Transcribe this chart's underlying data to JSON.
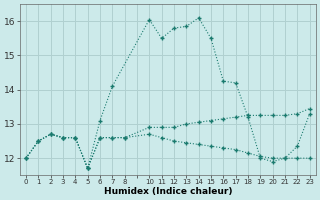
{
  "xlabel": "Humidex (Indice chaleur)",
  "bg_color": "#cceaea",
  "grid_color": "#b0d0d0",
  "line_color": "#1a7a6e",
  "xlim": [
    -0.5,
    23.5
  ],
  "ylim": [
    11.5,
    16.5
  ],
  "yticks": [
    12,
    13,
    14,
    15,
    16
  ],
  "xtick_labels": [
    "0",
    "1",
    "2",
    "3",
    "4",
    "5",
    "6",
    "7",
    "8",
    "",
    "10",
    "11",
    "12",
    "13",
    "14",
    "15",
    "16",
    "17",
    "18",
    "19",
    "20",
    "21",
    "22",
    "23"
  ],
  "line1_x": [
    0,
    1,
    2,
    3,
    4,
    5,
    6,
    7,
    10,
    11,
    12,
    13,
    14,
    15,
    16,
    17,
    18,
    19,
    20,
    21,
    22,
    23
  ],
  "line1_y": [
    12.0,
    12.5,
    12.7,
    12.6,
    12.6,
    11.7,
    13.1,
    14.1,
    16.05,
    15.5,
    15.8,
    15.85,
    16.1,
    15.5,
    14.25,
    14.2,
    13.2,
    12.0,
    11.9,
    12.0,
    12.35,
    13.3
  ],
  "line2_x": [
    0,
    1,
    2,
    3,
    4,
    5,
    6,
    7,
    8,
    10,
    11,
    12,
    13,
    14,
    15,
    16,
    17,
    18,
    19,
    20,
    21,
    22,
    23
  ],
  "line2_y": [
    12.0,
    12.5,
    12.7,
    12.6,
    12.6,
    11.7,
    12.6,
    12.6,
    12.6,
    12.7,
    12.6,
    12.5,
    12.45,
    12.4,
    12.35,
    12.3,
    12.25,
    12.15,
    12.05,
    12.0,
    12.0,
    12.0,
    12.0
  ],
  "line3_x": [
    0,
    1,
    2,
    3,
    4,
    5,
    6,
    7,
    8,
    10,
    11,
    12,
    13,
    14,
    15,
    16,
    17,
    18,
    19,
    20,
    21,
    22,
    23
  ],
  "line3_y": [
    12.0,
    12.5,
    12.7,
    12.6,
    12.6,
    11.7,
    12.6,
    12.6,
    12.6,
    12.9,
    12.9,
    12.9,
    13.0,
    13.05,
    13.1,
    13.15,
    13.2,
    13.25,
    13.25,
    13.25,
    13.25,
    13.3,
    13.45
  ]
}
